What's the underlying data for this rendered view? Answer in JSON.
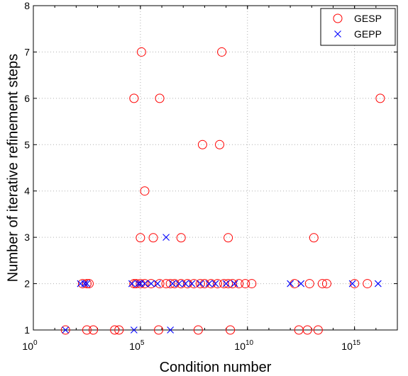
{
  "chart_data": {
    "type": "scatter",
    "xlabel": "Condition number",
    "ylabel": "Number of iterative refinement steps",
    "x_scale": "log10",
    "xlim": [
      1,
      1e+17
    ],
    "ylim": [
      1,
      8
    ],
    "grid": true,
    "legend_position": "top-right",
    "x_ticks": [
      {
        "base": "10",
        "exp": "0"
      },
      {
        "base": "10",
        "exp": "5"
      },
      {
        "base": "10",
        "exp": "10"
      },
      {
        "base": "10",
        "exp": "15"
      }
    ],
    "y_ticks": [
      "1",
      "2",
      "3",
      "4",
      "5",
      "6",
      "7",
      "8"
    ],
    "series": [
      {
        "name": "GESP",
        "marker": "circle",
        "color": "#ff0000",
        "points": [
          [
            1.5,
            1
          ],
          [
            2.5,
            1
          ],
          [
            2.8,
            1
          ],
          [
            3.8,
            1
          ],
          [
            4.0,
            1
          ],
          [
            5.85,
            1
          ],
          [
            7.7,
            1
          ],
          [
            9.2,
            1
          ],
          [
            12.4,
            1
          ],
          [
            12.8,
            1
          ],
          [
            13.3,
            1
          ],
          [
            2.3,
            2
          ],
          [
            2.5,
            2
          ],
          [
            2.6,
            2
          ],
          [
            4.7,
            2
          ],
          [
            4.8,
            2
          ],
          [
            5.0,
            2
          ],
          [
            5.2,
            2
          ],
          [
            5.5,
            2
          ],
          [
            5.9,
            2
          ],
          [
            6.2,
            2
          ],
          [
            6.4,
            2
          ],
          [
            6.6,
            2
          ],
          [
            6.9,
            2
          ],
          [
            7.2,
            2
          ],
          [
            7.5,
            2
          ],
          [
            7.8,
            2
          ],
          [
            8.0,
            2
          ],
          [
            8.3,
            2
          ],
          [
            8.6,
            2
          ],
          [
            8.9,
            2
          ],
          [
            9.1,
            2
          ],
          [
            9.3,
            2
          ],
          [
            9.6,
            2
          ],
          [
            9.9,
            2
          ],
          [
            10.2,
            2
          ],
          [
            12.2,
            2
          ],
          [
            12.9,
            2
          ],
          [
            13.5,
            2
          ],
          [
            13.7,
            2
          ],
          [
            15.0,
            2
          ],
          [
            15.6,
            2
          ],
          [
            6.9,
            2.99
          ],
          [
            5.0,
            2.99
          ],
          [
            5.6,
            2.99
          ],
          [
            9.1,
            2.99
          ],
          [
            13.1,
            2.99
          ],
          [
            5.2,
            4
          ],
          [
            7.9,
            5
          ],
          [
            8.7,
            5
          ],
          [
            4.7,
            6
          ],
          [
            5.9,
            6
          ],
          [
            16.2,
            6
          ],
          [
            5.05,
            7
          ],
          [
            8.8,
            7
          ]
        ]
      },
      {
        "name": "GEPP",
        "marker": "x",
        "color": "#0000ff",
        "points": [
          [
            1.5,
            1
          ],
          [
            4.7,
            1
          ],
          [
            6.4,
            1
          ],
          [
            2.2,
            2
          ],
          [
            2.4,
            2
          ],
          [
            2.5,
            2
          ],
          [
            4.6,
            2
          ],
          [
            4.9,
            2
          ],
          [
            5.0,
            2
          ],
          [
            5.2,
            2
          ],
          [
            5.5,
            2
          ],
          [
            5.8,
            2
          ],
          [
            6.5,
            2
          ],
          [
            6.8,
            2
          ],
          [
            7.1,
            2
          ],
          [
            7.4,
            2
          ],
          [
            7.8,
            2
          ],
          [
            8.2,
            2
          ],
          [
            8.5,
            2
          ],
          [
            9.0,
            2
          ],
          [
            9.4,
            2
          ],
          [
            12.0,
            2
          ],
          [
            12.5,
            2
          ],
          [
            14.9,
            2
          ],
          [
            16.1,
            2
          ],
          [
            6.2,
            3
          ]
        ]
      }
    ]
  }
}
